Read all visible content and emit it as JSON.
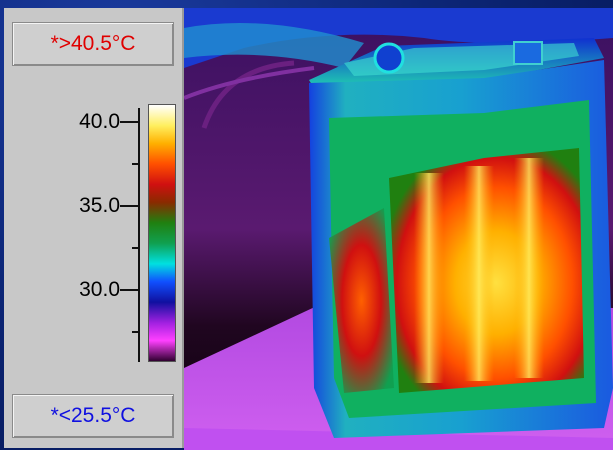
{
  "colors": {
    "high_text": "#e00000",
    "low_text": "#1010e0",
    "background": "#0a2070",
    "panel": "#c8c8c8"
  },
  "scale": {
    "over_range_label": "*>40.5°C",
    "under_range_label": "*<25.5°C",
    "ticks": [
      {
        "label": "40.0",
        "value": 40.0,
        "major": true
      },
      {
        "label": "",
        "value": 37.5,
        "major": false
      },
      {
        "label": "35.0",
        "value": 35.0,
        "major": true
      },
      {
        "label": "",
        "value": 32.5,
        "major": false
      },
      {
        "label": "30.0",
        "value": 30.0,
        "major": true
      },
      {
        "label": "",
        "value": 27.5,
        "major": false
      }
    ],
    "range": [
      25.5,
      40.5
    ],
    "palette": [
      "#ffffff",
      "#ffef60",
      "#ffb000",
      "#ff5000",
      "#d01010",
      "#8a2a00",
      "#208010",
      "#10a050",
      "#00e0e0",
      "#1050ff",
      "#1010a0",
      "#a020e0",
      "#ff40ff",
      "#300030"
    ]
  },
  "thermal_image": {
    "subject": "battery-pack-thermal-view"
  }
}
